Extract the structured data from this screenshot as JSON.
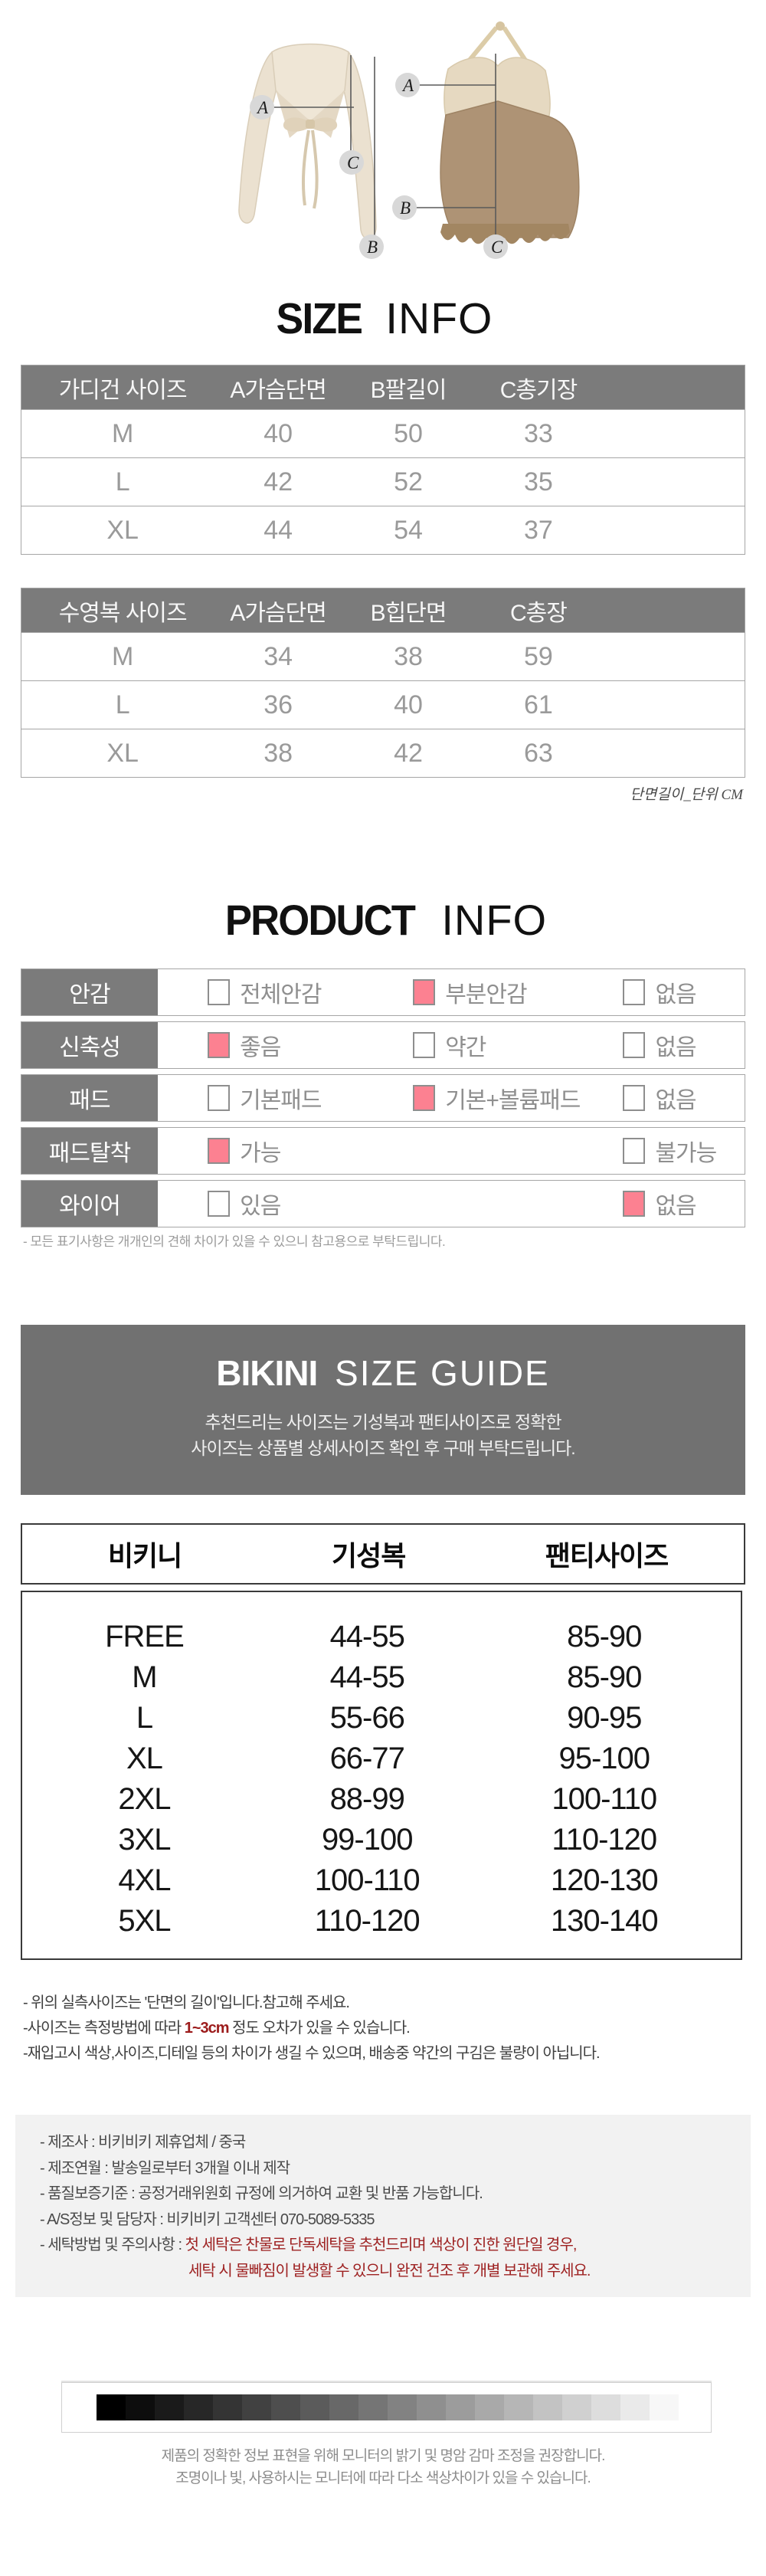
{
  "hero": {
    "marker_letters": [
      "A",
      "B",
      "C"
    ]
  },
  "size_info": {
    "title_bold": "SIZE",
    "title_light": "INFO",
    "unit_note": "단면길이_단위 CM",
    "cardigan_table": {
      "headers": [
        "가디건 사이즈",
        "A가슴단면",
        "B팔길이",
        "C총기장"
      ],
      "rows": [
        [
          "M",
          "40",
          "50",
          "33"
        ],
        [
          "L",
          "42",
          "52",
          "35"
        ],
        [
          "XL",
          "44",
          "54",
          "37"
        ]
      ]
    },
    "swimsuit_table": {
      "headers": [
        "수영복 사이즈",
        "A가슴단면",
        "B힙단면",
        "C총장"
      ],
      "rows": [
        [
          "M",
          "34",
          "38",
          "59"
        ],
        [
          "L",
          "36",
          "40",
          "61"
        ],
        [
          "XL",
          "38",
          "42",
          "63"
        ]
      ]
    }
  },
  "product_info": {
    "title_bold": "PRODUCT",
    "title_light": "INFO",
    "rows": [
      {
        "label": "안감",
        "options": [
          {
            "text": "전체안감",
            "checked": false,
            "pos": 1
          },
          {
            "text": "부분안감",
            "checked": true,
            "pos": 2
          },
          {
            "text": "없음",
            "checked": false,
            "pos": 3
          }
        ]
      },
      {
        "label": "신축성",
        "options": [
          {
            "text": "좋음",
            "checked": true,
            "pos": 1
          },
          {
            "text": "약간",
            "checked": false,
            "pos": 2
          },
          {
            "text": "없음",
            "checked": false,
            "pos": 3
          }
        ]
      },
      {
        "label": "패드",
        "options": [
          {
            "text": "기본패드",
            "checked": false,
            "pos": 1
          },
          {
            "text": "기본+볼륨패드",
            "checked": true,
            "pos": 2
          },
          {
            "text": "없음",
            "checked": false,
            "pos": 3
          }
        ]
      },
      {
        "label": "패드탈착",
        "options": [
          {
            "text": "가능",
            "checked": true,
            "pos": 1
          },
          {
            "text": "불가능",
            "checked": false,
            "pos": 3
          }
        ]
      },
      {
        "label": "와이어",
        "options": [
          {
            "text": "있음",
            "checked": false,
            "pos": 1
          },
          {
            "text": "없음",
            "checked": true,
            "pos": 3
          }
        ]
      }
    ],
    "note": "- 모든 표기사항은 개개인의 견해 차이가 있을 수 있으니 참고용으로 부탁드립니다."
  },
  "bikini_guide": {
    "title_bold": "BIKINI",
    "title_light": "SIZE GUIDE",
    "subtitle_line1": "추천드리는 사이즈는 기성복과 팬티사이즈로 정확한",
    "subtitle_line2": "사이즈는 상품별 상세사이즈 확인 후 구매 부탁드립니다.",
    "table": {
      "headers": [
        "비키니",
        "기성복",
        "팬티사이즈"
      ],
      "rows": [
        [
          "FREE",
          "44-55",
          "85-90"
        ],
        [
          "M",
          "44-55",
          "85-90"
        ],
        [
          "L",
          "55-66",
          "90-95"
        ],
        [
          "XL",
          "66-77",
          "95-100"
        ],
        [
          "2XL",
          "88-99",
          "100-110"
        ],
        [
          "3XL",
          "99-100",
          "110-120"
        ],
        [
          "4XL",
          "100-110",
          "120-130"
        ],
        [
          "5XL",
          "110-120",
          "130-140"
        ]
      ]
    },
    "notes": [
      {
        "prefix": "- 위의 실측사이즈는 '단면의 길이'입니다.참고해 주세요.",
        "highlight": "",
        "suffix": ""
      },
      {
        "prefix": "-사이즈는 측정방법에 따라 ",
        "highlight": "1~3cm",
        "suffix": " 정도 오차가 있을 수 있습니다."
      },
      {
        "prefix": "-재입고시 색상,사이즈,디테일 등의 차이가 생길 수 있으며, 배송중 약간의 구김은 불량이 아닙니다.",
        "highlight": "",
        "suffix": ""
      }
    ]
  },
  "footer_info": {
    "lines": [
      {
        "label": "- 제조사 : ",
        "value": "비키비키 제휴업체 / 중국",
        "red": false,
        "indent": false
      },
      {
        "label": "- 제조연월 : ",
        "value": "발송일로부터 3개월 이내 제작",
        "red": false,
        "indent": false
      },
      {
        "label": "- 품질보증기준 : ",
        "value": "공정거래위원회 규정에 의거하여 교환 및 반품 가능합니다.",
        "red": false,
        "indent": false
      },
      {
        "label": "- A/S정보 및 담당자 : ",
        "value": "비키비키 고객센터 070-5089-5335",
        "red": false,
        "indent": false
      },
      {
        "label": "- 세탁방법 및 주의사항 : ",
        "value": "첫 세탁은 찬물로 단독세탁을 추천드리며 색상이 진한 원단일 경우,",
        "red": true,
        "indent": false
      },
      {
        "label": "",
        "value": "세탁 시 물빠짐이 발생할 수 있으니 완전 건조 후 개별 보관해 주세요.",
        "red": true,
        "indent": true
      }
    ]
  },
  "monitor": {
    "gradient_steps": [
      "#000000",
      "#0d0d0d",
      "#1a1a1a",
      "#272727",
      "#343434",
      "#414141",
      "#4e4e4e",
      "#5b5b5b",
      "#686868",
      "#757575",
      "#828282",
      "#8f8f8f",
      "#9c9c9c",
      "#a9a9a9",
      "#b6b6b6",
      "#c3c3c3",
      "#d0d0d0",
      "#dddddd",
      "#eaeaea",
      "#f7f7f7"
    ],
    "note_line1": "제품의 정확한 정보 표현을 위해 모니터의 밝기 및 명암 감마 조정을 권장합니다.",
    "note_line2": "조명이나 빛, 사용하시는 모니터에 따라 다소 색상차이가 있을 수 있습니다."
  },
  "colors": {
    "accent_pink": "#fc8191",
    "table_header_gray": "#7b7b7b",
    "guide_panel_gray": "#717171",
    "warning_red": "#9e2222",
    "highlight_red": "#9c1b1b"
  }
}
